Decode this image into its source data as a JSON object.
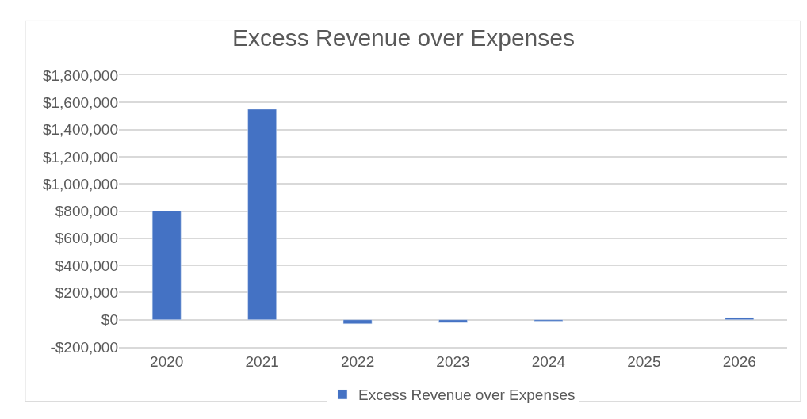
{
  "chart_data": {
    "type": "bar",
    "title": "Excess Revenue over Expenses",
    "categories": [
      "2020",
      "2021",
      "2022",
      "2023",
      "2024",
      "2025",
      "2026"
    ],
    "series": [
      {
        "name": "Excess Revenue over Expenses",
        "color": "#4472c4",
        "values": [
          800000,
          1550000,
          -30000,
          -20000,
          -10000,
          null,
          15000
        ]
      }
    ],
    "ylim": [
      -200000,
      1800000
    ],
    "yticks": [
      {
        "value": -200000,
        "label": "-$200,000"
      },
      {
        "value": 0,
        "label": "$0"
      },
      {
        "value": 200000,
        "label": "$200,000"
      },
      {
        "value": 400000,
        "label": "$400,000"
      },
      {
        "value": 600000,
        "label": "$600,000"
      },
      {
        "value": 800000,
        "label": "$800,000"
      },
      {
        "value": 1000000,
        "label": "$1,000,000"
      },
      {
        "value": 1200000,
        "label": "$1,200,000"
      },
      {
        "value": 1400000,
        "label": "$1,400,000"
      },
      {
        "value": 1600000,
        "label": "$1,600,000"
      },
      {
        "value": 1800000,
        "label": "$1,800,000"
      }
    ],
    "grid": "y",
    "legend": "bottom"
  }
}
